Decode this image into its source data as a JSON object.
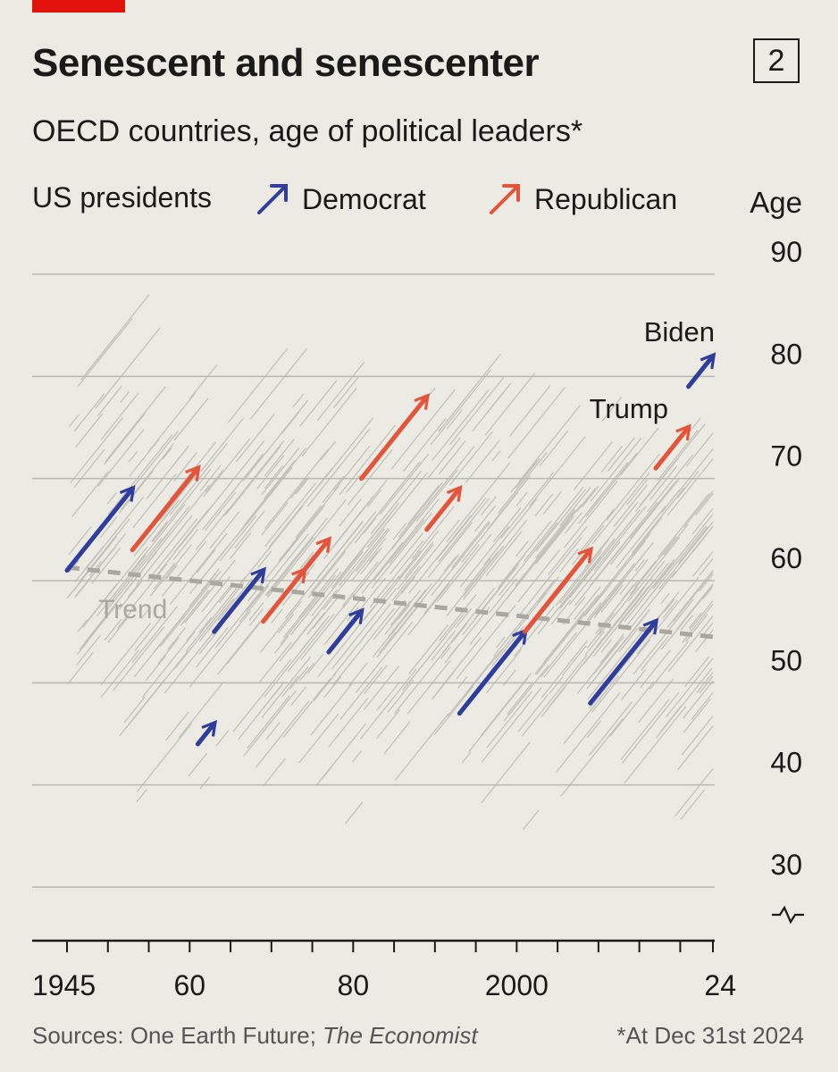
{
  "header": {
    "title": "Senescent and senescenter",
    "badge": "2",
    "subtitle": "OECD countries, age of political leaders*"
  },
  "legend": {
    "label": "US presidents",
    "democrat": "Democrat",
    "republican": "Republican"
  },
  "colors": {
    "accent": "#e3120b",
    "democrat": "#2e3d9e",
    "republican": "#e4533a",
    "background": "#ebebe3",
    "trend": "#a8a8a0",
    "background_lines": "#c2c2ba"
  },
  "chart_data": {
    "type": "scatter",
    "y_axis_title": "Age",
    "ylim": [
      25,
      92
    ],
    "xlim": [
      1945,
      2024
    ],
    "y_ticks": [
      90,
      80,
      70,
      60,
      50,
      40,
      30
    ],
    "x_ticks": [
      {
        "value": 1945,
        "label": "1945"
      },
      {
        "value": 1960,
        "label": "60"
      },
      {
        "value": 1980,
        "label": "80"
      },
      {
        "value": 2000,
        "label": "2000"
      },
      {
        "value": 2024,
        "label": "24"
      }
    ],
    "series": [
      {
        "name": "Democrat",
        "arrows": [
          {
            "start_year": 1945,
            "end_year": 1953,
            "start_age": 61,
            "end_age": 69
          },
          {
            "start_year": 1961,
            "end_year": 1963,
            "start_age": 44,
            "end_age": 46
          },
          {
            "start_year": 1963,
            "end_year": 1969,
            "start_age": 55,
            "end_age": 61
          },
          {
            "start_year": 1977,
            "end_year": 1981,
            "start_age": 53,
            "end_age": 57
          },
          {
            "start_year": 1993,
            "end_year": 2001,
            "start_age": 47,
            "end_age": 55
          },
          {
            "start_year": 2009,
            "end_year": 2017,
            "start_age": 48,
            "end_age": 56
          },
          {
            "start_year": 2021,
            "end_year": 2024,
            "start_age": 79,
            "end_age": 82,
            "label": "Biden"
          }
        ]
      },
      {
        "name": "Republican",
        "arrows": [
          {
            "start_year": 1953,
            "end_year": 1961,
            "start_age": 63,
            "end_age": 71
          },
          {
            "start_year": 1969,
            "end_year": 1974,
            "start_age": 56,
            "end_age": 61
          },
          {
            "start_year": 1974,
            "end_year": 1977,
            "start_age": 61,
            "end_age": 64
          },
          {
            "start_year": 1981,
            "end_year": 1989,
            "start_age": 70,
            "end_age": 78
          },
          {
            "start_year": 1989,
            "end_year": 1993,
            "start_age": 65,
            "end_age": 69
          },
          {
            "start_year": 2001,
            "end_year": 2009,
            "start_age": 55,
            "end_age": 63
          },
          {
            "start_year": 2017,
            "end_year": 2021,
            "start_age": 71,
            "end_age": 75,
            "label": "Trump"
          }
        ]
      }
    ],
    "trend": {
      "label": "Trend",
      "points": [
        {
          "year": 1945,
          "age": 61.3
        },
        {
          "year": 2024,
          "age": 54.5
        }
      ]
    },
    "annotations": [
      "Biden",
      "Trump",
      "Trend"
    ]
  },
  "footer": {
    "source_prefix": "Sources: One Earth Future; ",
    "source_italic": "The Economist",
    "note": "*At Dec 31st 2024"
  }
}
